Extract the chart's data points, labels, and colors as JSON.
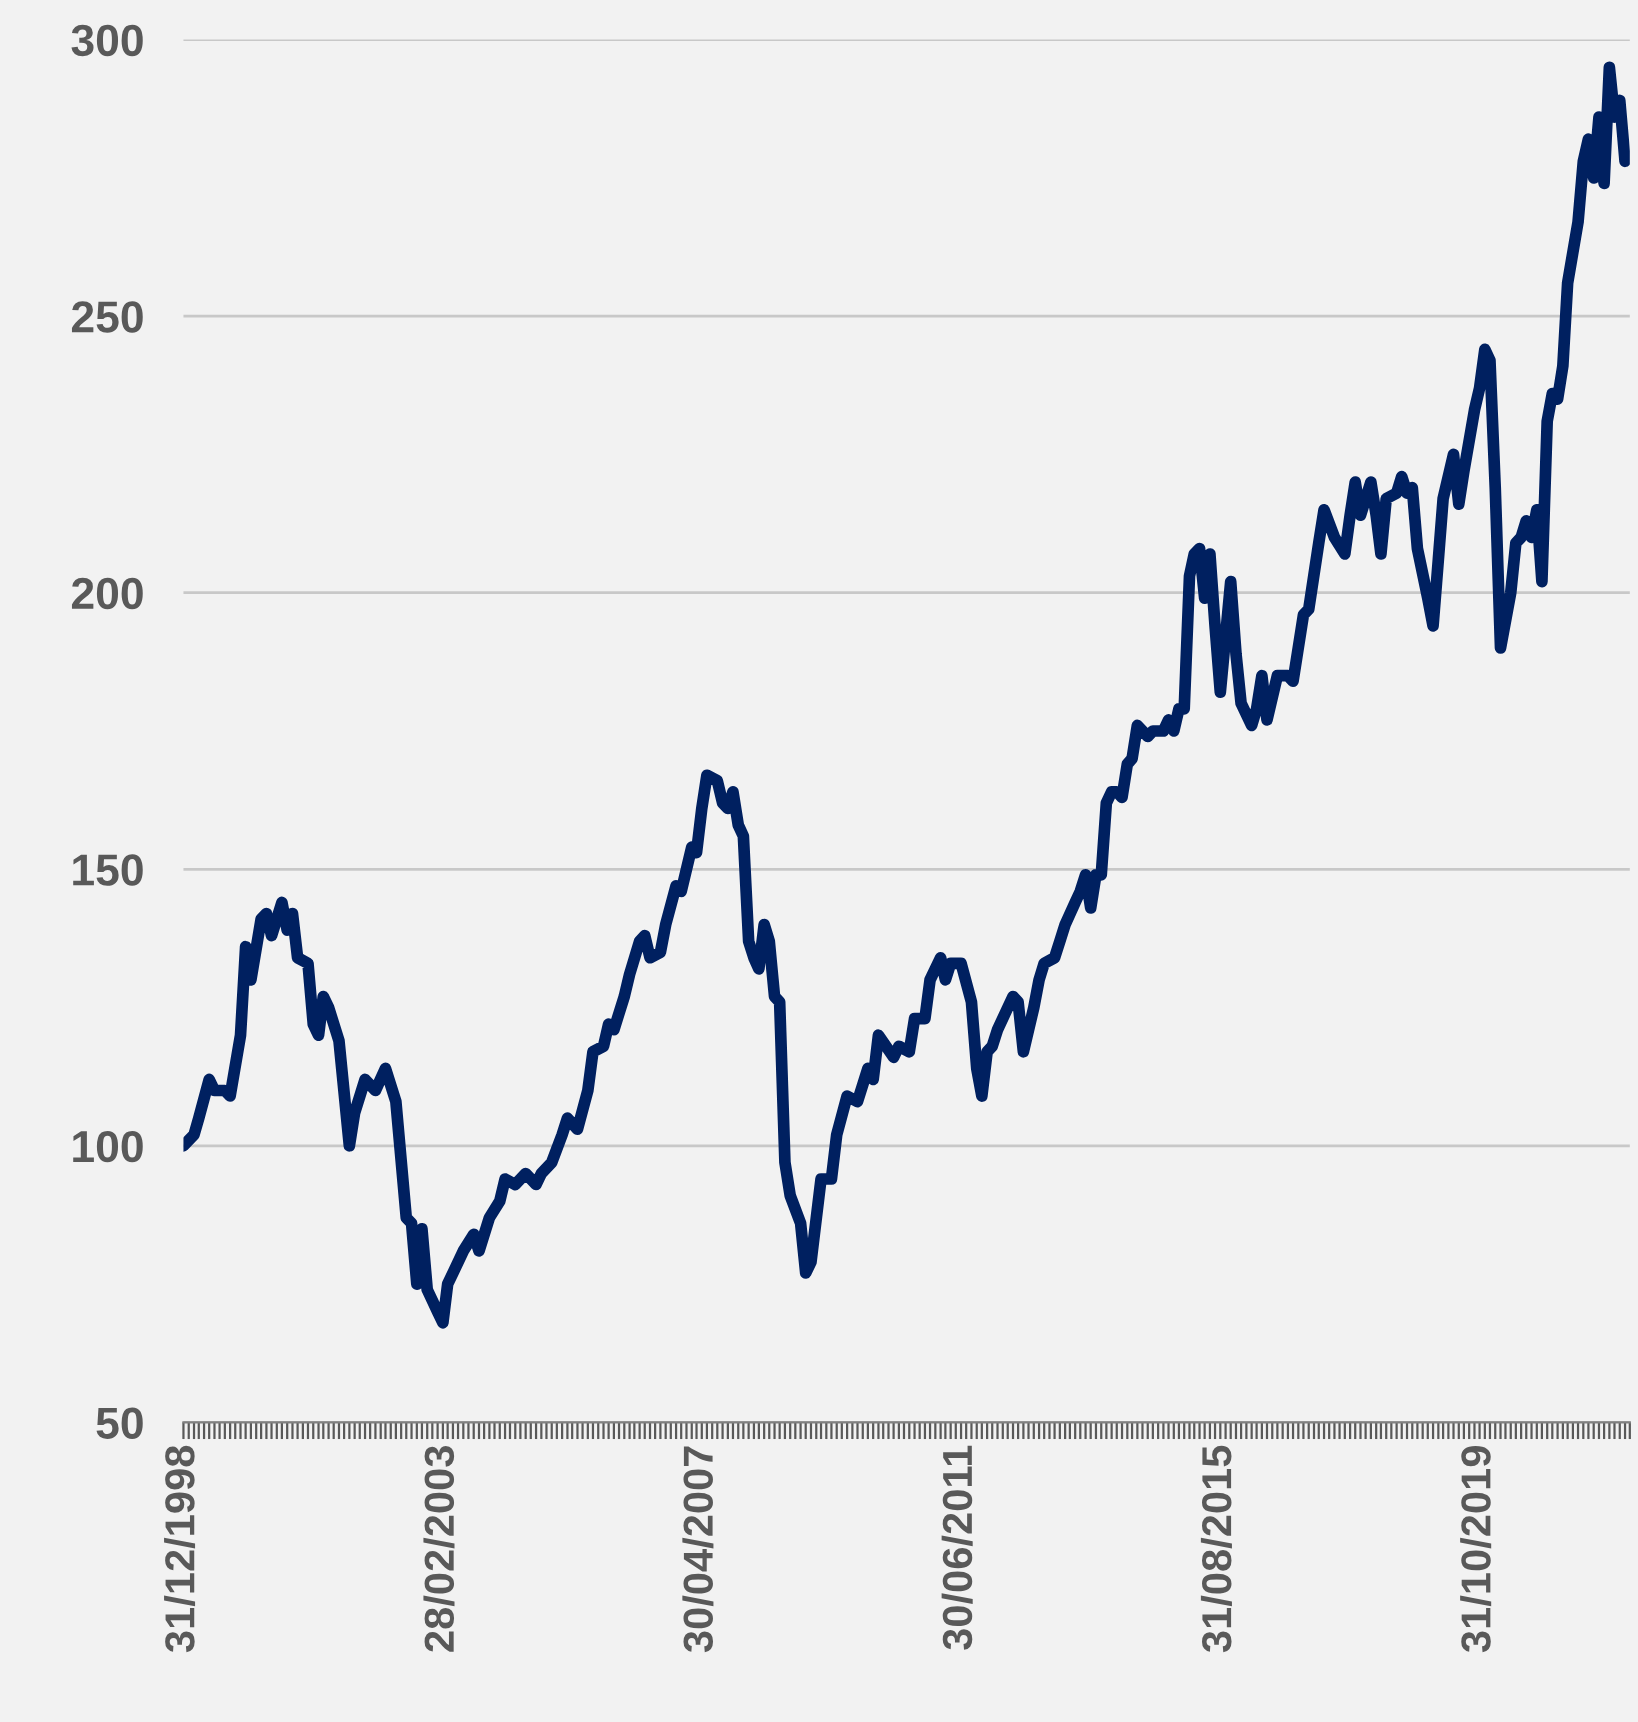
{
  "chart_data": {
    "type": "line",
    "x": [
      "1998-12",
      "1999-02",
      "1999-03",
      "1999-05",
      "1999-06",
      "1999-08",
      "1999-09",
      "1999-11",
      "1999-12",
      "2000-01",
      "2000-03",
      "2000-04",
      "2000-05",
      "2000-07",
      "2000-08",
      "2000-09",
      "2000-10",
      "2000-12",
      "2001-01",
      "2001-02",
      "2001-03",
      "2001-04",
      "2001-06",
      "2001-08",
      "2001-09",
      "2001-11",
      "2002-01",
      "2002-03",
      "2002-05",
      "2002-07",
      "2002-08",
      "2002-09",
      "2002-10",
      "2002-11",
      "2003-01",
      "2003-02",
      "2003-03",
      "2003-04",
      "2003-06",
      "2003-08",
      "2003-09",
      "2003-11",
      "2004-01",
      "2004-02",
      "2004-04",
      "2004-06",
      "2004-08",
      "2004-09",
      "2004-11",
      "2005-01",
      "2005-02",
      "2005-04",
      "2005-06",
      "2005-07",
      "2005-09",
      "2005-10",
      "2005-11",
      "2006-01",
      "2006-02",
      "2006-04",
      "2006-05",
      "2006-06",
      "2006-08",
      "2006-09",
      "2006-11",
      "2006-12",
      "2007-02",
      "2007-03",
      "2007-04",
      "2007-05",
      "2007-07",
      "2007-08",
      "2007-09",
      "2007-10",
      "2007-11",
      "2007-12",
      "2008-01",
      "2008-02",
      "2008-03",
      "2008-04",
      "2008-05",
      "2008-06",
      "2008-07",
      "2008-08",
      "2008-09",
      "2008-11",
      "2008-12",
      "2009-01",
      "2009-03",
      "2009-05",
      "2009-06",
      "2009-08",
      "2009-10",
      "2009-12",
      "2010-01",
      "2010-02",
      "2010-05",
      "2010-06",
      "2010-08",
      "2010-09",
      "2010-11",
      "2010-12",
      "2011-02",
      "2011-03",
      "2011-04",
      "2011-06",
      "2011-08",
      "2011-09",
      "2011-10",
      "2011-11",
      "2011-12",
      "2012-01",
      "2012-04",
      "2012-05",
      "2012-06",
      "2012-08",
      "2012-09",
      "2012-10",
      "2012-12",
      "2013-01",
      "2013-02",
      "2013-04",
      "2013-05",
      "2013-06",
      "2013-07",
      "2013-08",
      "2013-09",
      "2013-10",
      "2013-11",
      "2013-12",
      "2014-01",
      "2014-02",
      "2014-03",
      "2014-04",
      "2014-06",
      "2014-07",
      "2014-09",
      "2014-10",
      "2014-11",
      "2014-12",
      "2015-01",
      "2015-02",
      "2015-03",
      "2015-04",
      "2015-05",
      "2015-06",
      "2015-07",
      "2015-08",
      "2015-10",
      "2015-11",
      "2015-12",
      "2016-02",
      "2016-03",
      "2016-04",
      "2016-05",
      "2016-07",
      "2016-09",
      "2016-10",
      "2016-12",
      "2017-01",
      "2017-03",
      "2017-04",
      "2017-06",
      "2017-08",
      "2017-09",
      "2017-10",
      "2017-11",
      "2018-01",
      "2018-02",
      "2018-03",
      "2018-04",
      "2018-06",
      "2018-07",
      "2018-08",
      "2018-09",
      "2018-10",
      "2018-12",
      "2019-01",
      "2019-02",
      "2019-03",
      "2019-05",
      "2019-06",
      "2019-07",
      "2019-09",
      "2019-10",
      "2019-11",
      "2019-12",
      "2020-01",
      "2020-02",
      "2020-04",
      "2020-05",
      "2020-06",
      "2020-07",
      "2020-08",
      "2020-09",
      "2020-10",
      "2020-11",
      "2020-12",
      "2021-01",
      "2021-02",
      "2021-03",
      "2021-05",
      "2021-06",
      "2021-07",
      "2021-08",
      "2021-09",
      "2021-10",
      "2021-11",
      "2021-12",
      "2022-01",
      "2022-02"
    ],
    "series": [
      {
        "color": "#002060",
        "values": [
          100,
          102,
          105,
          112,
          110,
          110,
          109,
          120,
          136,
          130,
          141,
          142,
          138,
          144,
          139,
          142,
          134,
          133,
          122,
          120,
          127,
          125,
          119,
          100,
          106,
          112,
          110,
          114,
          108,
          87,
          86,
          75,
          85,
          74,
          70,
          68,
          75,
          77,
          81,
          84,
          81,
          87,
          90,
          94,
          93,
          95,
          93,
          95,
          97,
          102,
          105,
          103,
          110,
          117,
          118,
          122,
          121,
          127,
          131,
          137,
          138,
          134,
          135,
          140,
          147,
          146,
          154,
          153,
          161,
          167,
          166,
          162,
          161,
          164,
          158,
          156,
          137,
          134,
          132,
          140,
          137,
          127,
          126,
          97,
          91,
          86,
          77,
          79,
          94,
          94,
          102,
          109,
          108,
          114,
          112,
          120,
          116,
          118,
          117,
          123,
          123,
          130,
          134,
          130,
          133,
          133,
          126,
          114,
          109,
          117,
          118,
          121,
          127,
          126,
          117,
          125,
          130,
          133,
          134,
          137,
          140,
          144,
          146,
          149,
          143,
          149,
          149,
          162,
          164,
          164,
          163,
          169,
          170,
          176,
          174,
          175,
          175,
          177,
          175,
          179,
          179,
          203,
          207,
          208,
          199,
          207,
          194,
          182,
          202,
          189,
          180,
          176,
          179,
          185,
          177,
          185,
          185,
          184,
          196,
          197,
          209,
          215,
          210,
          207,
          214,
          220,
          214,
          220,
          214,
          207,
          217,
          218,
          221,
          218,
          219,
          208,
          199,
          194,
          206,
          217,
          225,
          216,
          222,
          233,
          237,
          244,
          242,
          219,
          190,
          200,
          209,
          210,
          213,
          210,
          215,
          202,
          231,
          236,
          235,
          241,
          256,
          267,
          278,
          282,
          275,
          286,
          274,
          295,
          286,
          289,
          278
        ]
      }
    ],
    "xlim": [
      "1998-12",
      "2022-03"
    ],
    "xticks": [
      {
        "value": "1998-12",
        "label": "31/12/1998"
      },
      {
        "value": "2003-02",
        "label": "28/02/2003"
      },
      {
        "value": "2007-04",
        "label": "30/04/2007"
      },
      {
        "value": "2011-06",
        "label": "30/06/2011"
      },
      {
        "value": "2015-08",
        "label": "31/08/2015"
      },
      {
        "value": "2019-10",
        "label": "31/10/2019"
      }
    ],
    "ylim": [
      50,
      300
    ],
    "yticks": [
      50,
      100,
      150,
      200,
      250,
      300
    ],
    "grid": "y",
    "legend": false,
    "marker": "none",
    "line_style": "solid"
  }
}
